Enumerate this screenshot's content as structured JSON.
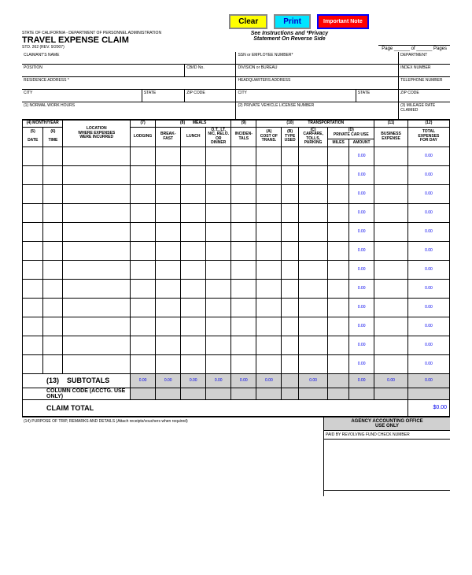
{
  "buttons": {
    "clear": "Clear",
    "print": "Print",
    "note": "Important Note"
  },
  "header": {
    "agency": "STATE OF CALIFORNIA  -  DEPARTMENT OF PERSONNEL ADMINISTRATION",
    "title": "TRAVEL EXPENSE CLAIM",
    "formno": "STD. 262 (REV. 9/2007)",
    "instr1": "See Instructions and *Privacy",
    "instr2": "Statement On Reverse Side",
    "page": "Page ______ of ______ Pages"
  },
  "info": {
    "r1c1": "CLAIMANT'S NAME",
    "r1c2": "SSN or EMPLOYEE NUMBER*",
    "r1c3": "DEPARTMENT",
    "r2c1": "POSITION",
    "r2c2": "CB/ID No.",
    "r2c3": "DIVISION or BUREAU",
    "r2c4": "INDEX NUMBER",
    "r3c1": "RESIDENCE ADDRESS *",
    "r3c2": "HEADQUARTERS ADDRESS",
    "r3c3": "TELEPHONE NUMBER",
    "r4c1": "CITY",
    "r4c2": "STATE",
    "r4c3": "ZIP CODE",
    "r4c4": "CITY",
    "r4c5": "STATE",
    "r4c6": "ZIP CODE",
    "r5c1": "(1) NORMAL WORK HOURS",
    "r5c2": "(2) PRIVATE VEHICLE LICENSE NUMBER",
    "r5c3": "(3) MILEAGE RATE CLAIMED"
  },
  "grid": {
    "h_month": "(4) MONTH/YEAR",
    "h_loc": "LOCATION\nWHERE EXPENSES\nWERE INCURRED",
    "h_5": "(5)",
    "h_6": "(6)",
    "h_7": "(7)",
    "h_8": "(8)",
    "h_9": "(9)",
    "h_10": "(10)",
    "h_11": "(11)",
    "h_12": "(12)",
    "h_13": "(13)",
    "h_date": "DATE",
    "h_time": "TIME",
    "h_lodging": "LODGING",
    "h_meals": "MEALS",
    "h_bf": "BREAK-\nFAST",
    "h_lunch": "LUNCH",
    "h_dinner": "O.T., LT,\nN/C, RELO.\nOR\nDINNER",
    "h_inc": "INCIDEN-\nTALS",
    "h_trans": "TRANSPORTATION",
    "h_ta": "(A)\nCOST OF\nTRANS.",
    "h_tb": "(B)\nTYPE\nUSED",
    "h_tc": "(C)\nCARFARE,\nTOLLS,\nPARKING",
    "h_td": "(D)\nPRIVATE CAR USE",
    "h_miles": "MILES",
    "h_amount": "AMOUNT",
    "h_biz": "BUSINESS\nEXPENSE",
    "h_tot": "TOTAL\nEXPENSES\nFOR DAY",
    "zero": "0.00",
    "subtotals": "SUBTOTALS",
    "colcode": "COLUMN CODE (ACCTG. USE ONLY)",
    "claimtotal": "CLAIM TOTAL",
    "claimtotal_val": "$0.00"
  },
  "bottom": {
    "purpose": "(14) PURPOSE OF TRIP, REMARKS AND DETAILS (Attach receipts/vouchers when required)",
    "agency_hdr": "AGENCY ACCOUNTING OFFICE\nUSE ONLY",
    "agency_sub": "PAID BY REVOLVING FUND CHECK NUMBER"
  },
  "colors": {
    "blue": "#0000ee",
    "shade": "#d0d0d0",
    "yellow": "#ffff00",
    "cyan": "#00e5ff",
    "red": "#ff0000"
  }
}
